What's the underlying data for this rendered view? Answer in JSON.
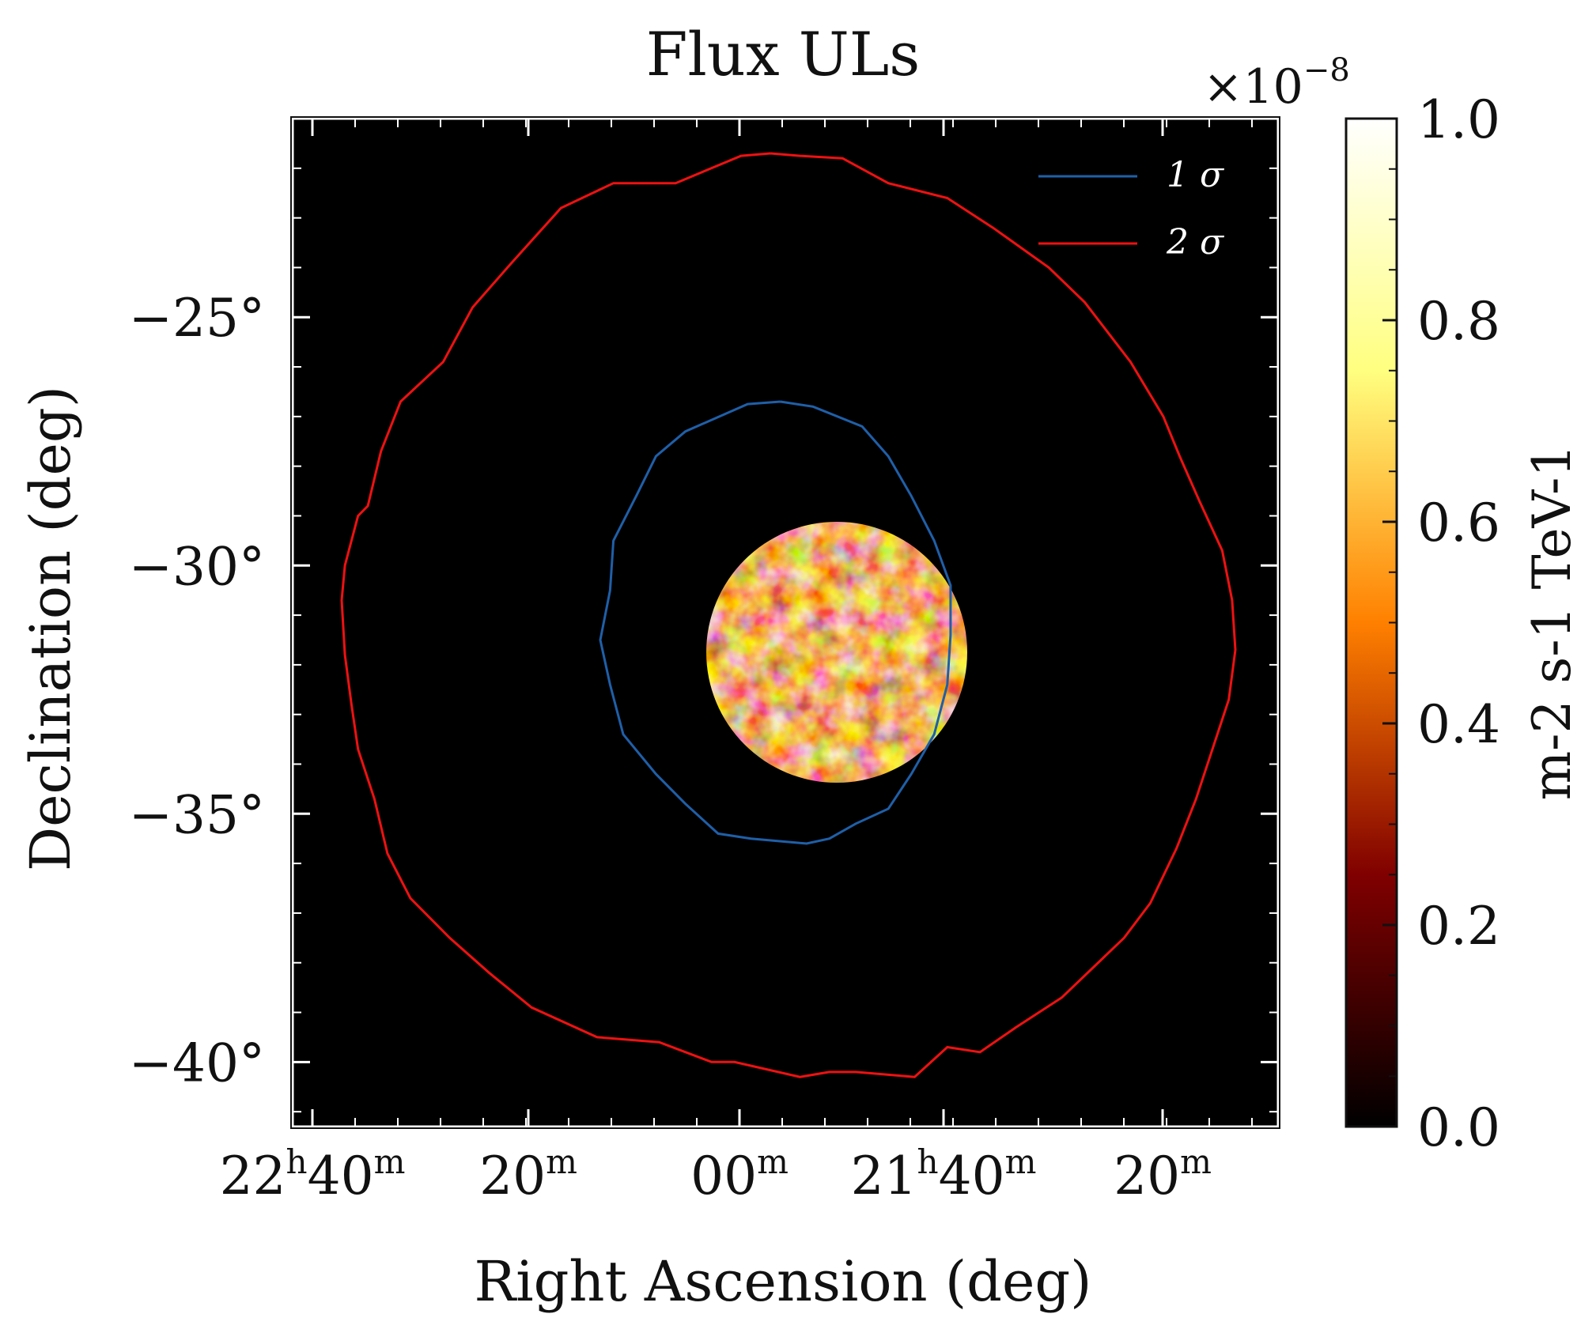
{
  "chart_data": {
    "type": "heatmap",
    "title": "Flux ULs",
    "xlabel": "Right Ascension (deg)",
    "ylabel": "Declination (deg)",
    "xticks": [
      {
        "main": "22",
        "sup1": "h",
        "mid": "40",
        "sup2": "m"
      },
      {
        "main": "",
        "sup1": "",
        "mid": "20",
        "sup2": "m"
      },
      {
        "main": "",
        "sup1": "",
        "mid": "00",
        "sup2": "m"
      },
      {
        "main": "21",
        "sup1": "h",
        "mid": "40",
        "sup2": "m"
      },
      {
        "main": "",
        "sup1": "",
        "mid": "20",
        "sup2": "m"
      }
    ],
    "yticks": [
      {
        "value": -25,
        "label": "−25°"
      },
      {
        "value": -30,
        "label": "−30°"
      },
      {
        "value": -35,
        "label": "−35°"
      },
      {
        "value": -40,
        "label": "−40°"
      }
    ],
    "ylim": [
      -41.3,
      -21.0
    ],
    "xlim": [
      22.77,
      21.0
    ],
    "colorbar": {
      "label": "m-2 s-1 TeV-1",
      "multiplier_base": "×10",
      "multiplier_exp": "−8",
      "range": [
        0.0,
        1.0
      ],
      "ticks": [
        {
          "value": 0.0,
          "label": "0.0"
        },
        {
          "value": 0.2,
          "label": "0.2"
        },
        {
          "value": 0.4,
          "label": "0.4"
        },
        {
          "value": 0.6,
          "label": "0.6"
        },
        {
          "value": 0.8,
          "label": "0.8"
        },
        {
          "value": 1.0,
          "label": "1.0"
        }
      ],
      "colormap": "afmhot"
    },
    "heatmap_region": {
      "center_ra": 21.83,
      "center_dec": -31.6,
      "radius_deg": 2.6
    },
    "legend": {
      "placement": "top-right",
      "entries": [
        {
          "label": "1 σ",
          "color": "#1f5fa8"
        },
        {
          "label": "2 σ",
          "color": "#ee1111"
        }
      ]
    },
    "contours": [
      {
        "name": "1 σ",
        "color": "#1f5fa8",
        "points": [
          [
            21.86,
            -26.7
          ],
          [
            21.76,
            -26.75
          ],
          [
            21.57,
            -27.3
          ],
          [
            21.48,
            -27.8
          ],
          [
            21.42,
            -28.6
          ],
          [
            21.35,
            -29.5
          ],
          [
            21.34,
            -30.5
          ],
          [
            21.31,
            -31.5
          ],
          [
            21.34,
            -32.4
          ],
          [
            21.38,
            -33.4
          ],
          [
            21.48,
            -34.2
          ],
          [
            21.57,
            -34.8
          ],
          [
            21.67,
            -35.4
          ],
          [
            21.77,
            -35.5
          ],
          [
            21.94,
            -35.6
          ],
          [
            22.01,
            -35.5
          ],
          [
            22.09,
            -35.2
          ],
          [
            22.19,
            -34.9
          ],
          [
            22.26,
            -34.2
          ],
          [
            22.33,
            -33.4
          ],
          [
            22.37,
            -32.4
          ],
          [
            22.38,
            -31.4
          ],
          [
            22.38,
            -30.4
          ],
          [
            22.33,
            -29.5
          ],
          [
            22.26,
            -28.6
          ],
          [
            22.19,
            -27.8
          ],
          [
            22.11,
            -27.2
          ],
          [
            21.96,
            -26.8
          ],
          [
            21.86,
            -26.7
          ]
        ]
      },
      {
        "name": "2 σ",
        "color": "#ee1111",
        "points": [
          [
            21.83,
            -21.7
          ],
          [
            21.74,
            -21.75
          ],
          [
            21.54,
            -22.3
          ],
          [
            21.35,
            -22.3
          ],
          [
            21.19,
            -22.8
          ],
          [
            21.04,
            -23.9
          ],
          [
            20.92,
            -24.8
          ],
          [
            20.83,
            -25.9
          ],
          [
            20.7,
            -26.7
          ],
          [
            20.64,
            -27.7
          ],
          [
            20.6,
            -28.8
          ],
          [
            20.57,
            -29.0
          ],
          [
            20.53,
            -30.0
          ],
          [
            20.52,
            -30.7
          ],
          [
            20.53,
            -31.8
          ],
          [
            20.55,
            -32.8
          ],
          [
            20.57,
            -33.7
          ],
          [
            20.62,
            -34.7
          ],
          [
            20.66,
            -35.8
          ],
          [
            20.73,
            -36.7
          ],
          [
            20.85,
            -37.5
          ],
          [
            20.97,
            -38.2
          ],
          [
            21.1,
            -38.9
          ],
          [
            21.3,
            -39.5
          ],
          [
            21.49,
            -39.6
          ],
          [
            21.65,
            -40.0
          ],
          [
            21.72,
            -40.0
          ],
          [
            21.92,
            -40.3
          ],
          [
            22.01,
            -40.2
          ],
          [
            22.09,
            -40.2
          ],
          [
            22.27,
            -40.3
          ],
          [
            22.37,
            -39.7
          ],
          [
            22.47,
            -39.8
          ],
          [
            22.58,
            -39.3
          ],
          [
            22.72,
            -38.7
          ],
          [
            22.91,
            -37.5
          ],
          [
            22.99,
            -36.8
          ],
          [
            23.07,
            -35.7
          ],
          [
            23.13,
            -34.7
          ],
          [
            23.2,
            -33.3
          ],
          [
            23.23,
            -32.7
          ],
          [
            23.25,
            -31.7
          ],
          [
            23.24,
            -30.7
          ],
          [
            23.21,
            -29.7
          ],
          [
            23.14,
            -28.7
          ],
          [
            23.08,
            -27.8
          ],
          [
            23.03,
            -27.0
          ],
          [
            22.93,
            -25.9
          ],
          [
            22.79,
            -24.7
          ],
          [
            22.68,
            -24.0
          ],
          [
            22.51,
            -23.2
          ],
          [
            22.37,
            -22.6
          ],
          [
            22.19,
            -22.3
          ],
          [
            22.05,
            -21.8
          ],
          [
            21.92,
            -21.75
          ],
          [
            21.83,
            -21.7
          ]
        ]
      }
    ]
  }
}
